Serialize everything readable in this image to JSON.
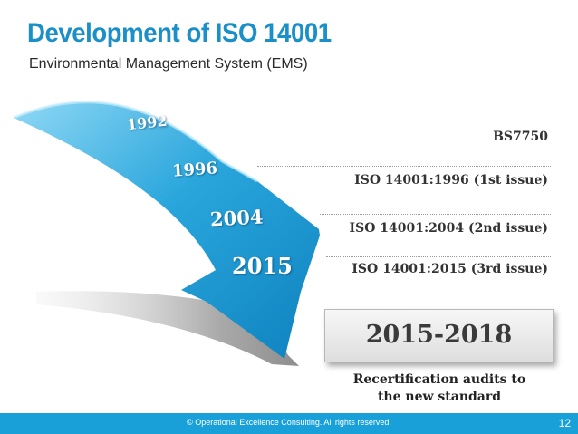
{
  "header": {
    "title": "Development of ISO 14001",
    "subtitle": "Environmental Management System (EMS)"
  },
  "timeline": {
    "milestones": [
      {
        "year": "1992",
        "label": "BS7750"
      },
      {
        "year": "1996",
        "label": "ISO 14001:1996 (1st issue)"
      },
      {
        "year": "2004",
        "label": "ISO 14001:2004 (2nd issue)"
      },
      {
        "year": "2015",
        "label": "ISO 14001:2015 (3rd issue)"
      }
    ]
  },
  "transition": {
    "period": "2015-2018",
    "caption_line1": "Recertification audits to",
    "caption_line2": "the new standard"
  },
  "footer": {
    "copyright": "© Operational Excellence Consulting.  All rights reserved.",
    "page_number": "12"
  },
  "colors": {
    "accent": "#1a8fc8",
    "arrow": "#2aa6dc",
    "footer": "#1aa0d8"
  }
}
